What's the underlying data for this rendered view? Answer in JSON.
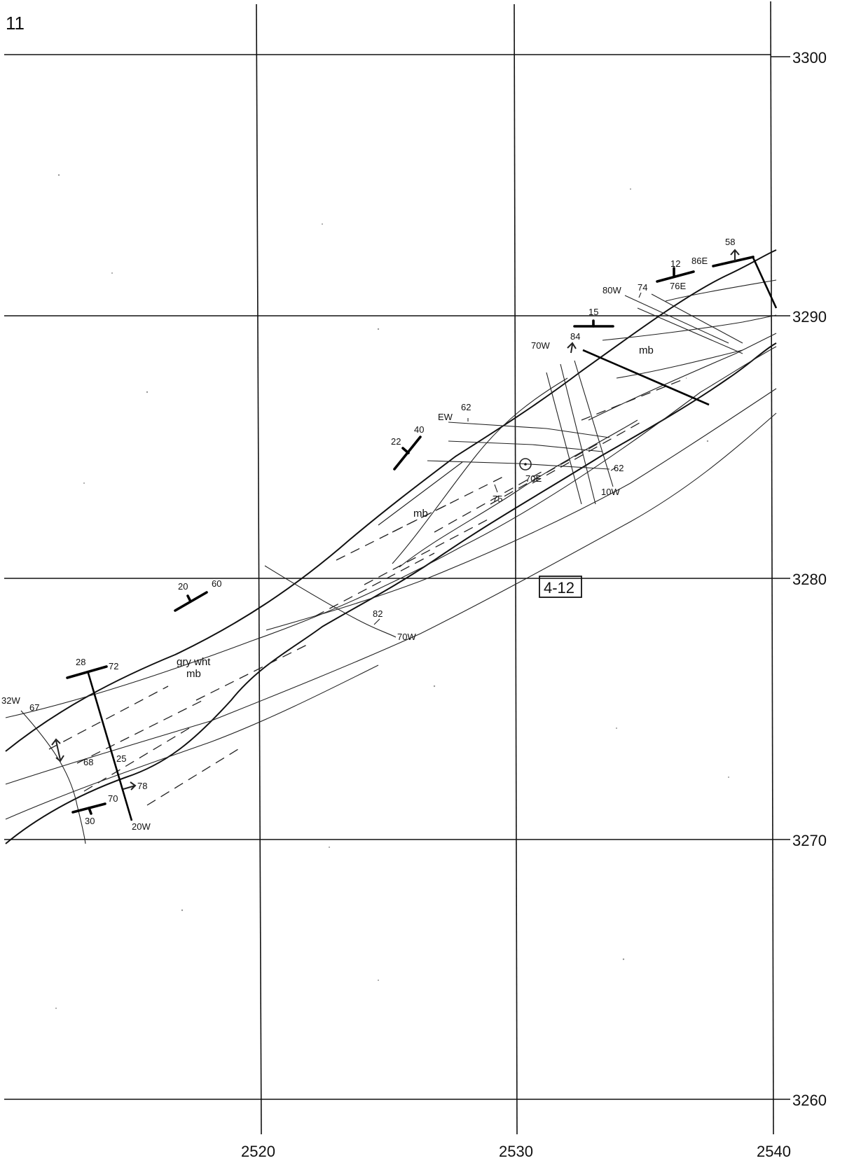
{
  "sheet_number": "11",
  "station_label": "4-12",
  "grid": {
    "easting_labels": [
      "2520",
      "2530",
      "2540"
    ],
    "northing_labels": [
      "3300",
      "3290",
      "3280",
      "3270",
      "3260"
    ]
  },
  "units": {
    "mb_upper": "mb",
    "mb_mid": "mb",
    "gray_white_line1": "gry wht",
    "gray_white_line2": "mb"
  },
  "attitudes": {
    "a58": "58",
    "a86E": "86E",
    "a12": "12",
    "a76E": "76E",
    "a80W": "80W",
    "a74": "74",
    "a15": "15",
    "a70W_top": "70W",
    "a84": "84",
    "aEW": "EW",
    "a62_top": "62",
    "a22": "22",
    "a40": "40",
    "a62_right": "62",
    "a70E": "70E",
    "a10W": "10W",
    "a75": "75",
    "a20": "20",
    "a60": "60",
    "a82": "82",
    "a70W_mid": "70W",
    "a28": "28",
    "a72": "72",
    "a32W": "32W",
    "a67": "67",
    "a68": "68",
    "a25": "25",
    "a78": "78",
    "a70": "70",
    "a30": "30",
    "a20W": "20W"
  }
}
